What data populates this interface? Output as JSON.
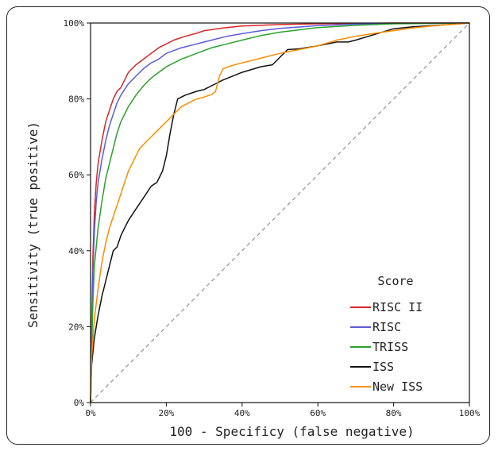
{
  "chart_data": {
    "type": "line",
    "title": "",
    "xlabel": "100 - Specificy (false negative)",
    "ylabel": "Sensitivity (true positive)",
    "xlim": [
      0,
      100
    ],
    "ylim": [
      0,
      100
    ],
    "x_ticks": [
      0,
      20,
      40,
      60,
      80,
      100
    ],
    "y_ticks": [
      0,
      20,
      40,
      60,
      80,
      100
    ],
    "x_tick_labels": [
      "0%",
      "20%",
      "40%",
      "60%",
      "80%",
      "100%"
    ],
    "y_tick_labels": [
      "0%",
      "20%",
      "40%",
      "60%",
      "80%",
      "100%"
    ],
    "grid": false,
    "legend": {
      "title": "Score",
      "position": "bottom-right"
    },
    "reference_line": {
      "style": "dashed",
      "color": "#999999",
      "points": [
        [
          0,
          0
        ],
        [
          100,
          100
        ]
      ]
    },
    "series": [
      {
        "name": "RISC II",
        "color": "#d62728",
        "points": [
          [
            0,
            0
          ],
          [
            0.3,
            20
          ],
          [
            0.6,
            38
          ],
          [
            1,
            50
          ],
          [
            1.5,
            58
          ],
          [
            2,
            63
          ],
          [
            3,
            69
          ],
          [
            4,
            74
          ],
          [
            5,
            77
          ],
          [
            6,
            80
          ],
          [
            7,
            82
          ],
          [
            8,
            83
          ],
          [
            9,
            85
          ],
          [
            10,
            87
          ],
          [
            12,
            89
          ],
          [
            14,
            90.5
          ],
          [
            16,
            92
          ],
          [
            18,
            93.5
          ],
          [
            20,
            94.5
          ],
          [
            22,
            95.5
          ],
          [
            25,
            96.5
          ],
          [
            28,
            97.3
          ],
          [
            30,
            98
          ],
          [
            35,
            98.7
          ],
          [
            40,
            99.2
          ],
          [
            50,
            99.6
          ],
          [
            60,
            99.8
          ],
          [
            80,
            100
          ],
          [
            100,
            100
          ]
        ]
      },
      {
        "name": "RISC",
        "color": "#5b5bd6",
        "points": [
          [
            0,
            0
          ],
          [
            0.3,
            18
          ],
          [
            0.6,
            34
          ],
          [
            1,
            45
          ],
          [
            1.5,
            53
          ],
          [
            2,
            58
          ],
          [
            3,
            64
          ],
          [
            4,
            69
          ],
          [
            5,
            73
          ],
          [
            6,
            76
          ],
          [
            7,
            79
          ],
          [
            8,
            81
          ],
          [
            9,
            82.5
          ],
          [
            10,
            84
          ],
          [
            12,
            86
          ],
          [
            14,
            88
          ],
          [
            16,
            89.5
          ],
          [
            18,
            90.5
          ],
          [
            20,
            92
          ],
          [
            24,
            93.5
          ],
          [
            28,
            94.5
          ],
          [
            32,
            95.5
          ],
          [
            36,
            96.5
          ],
          [
            40,
            97.2
          ],
          [
            45,
            98
          ],
          [
            50,
            98.6
          ],
          [
            60,
            99.3
          ],
          [
            70,
            99.7
          ],
          [
            80,
            99.9
          ],
          [
            100,
            100
          ]
        ]
      },
      {
        "name": "TRISS",
        "color": "#2ca02c",
        "points": [
          [
            0,
            0
          ],
          [
            0.3,
            14
          ],
          [
            0.6,
            26
          ],
          [
            1,
            36
          ],
          [
            2,
            46
          ],
          [
            3,
            53
          ],
          [
            4,
            59
          ],
          [
            5,
            63
          ],
          [
            6,
            67
          ],
          [
            7,
            71
          ],
          [
            8,
            74
          ],
          [
            10,
            78
          ],
          [
            12,
            81
          ],
          [
            14,
            83.5
          ],
          [
            16,
            85.5
          ],
          [
            18,
            87
          ],
          [
            20,
            88.5
          ],
          [
            24,
            90.5
          ],
          [
            28,
            92
          ],
          [
            32,
            93.5
          ],
          [
            36,
            94.5
          ],
          [
            40,
            95.5
          ],
          [
            45,
            96.7
          ],
          [
            50,
            97.6
          ],
          [
            55,
            98.2
          ],
          [
            60,
            98.8
          ],
          [
            70,
            99.4
          ],
          [
            80,
            99.8
          ],
          [
            100,
            100
          ]
        ]
      },
      {
        "name": "ISS",
        "color": "#111111",
        "points": [
          [
            0,
            0
          ],
          [
            0.3,
            10
          ],
          [
            1,
            17
          ],
          [
            2,
            23
          ],
          [
            3,
            28
          ],
          [
            4,
            32
          ],
          [
            5,
            36
          ],
          [
            6,
            40
          ],
          [
            7,
            41
          ],
          [
            8,
            44
          ],
          [
            9,
            46
          ],
          [
            10,
            48
          ],
          [
            12,
            51
          ],
          [
            14,
            54
          ],
          [
            16,
            57
          ],
          [
            17.5,
            58
          ],
          [
            18,
            59
          ],
          [
            19,
            61
          ],
          [
            20,
            65
          ],
          [
            21,
            71
          ],
          [
            22,
            76
          ],
          [
            23,
            80
          ],
          [
            25,
            81
          ],
          [
            28,
            82
          ],
          [
            30,
            82.5
          ],
          [
            33,
            84
          ],
          [
            35,
            85
          ],
          [
            40,
            87
          ],
          [
            45,
            88.5
          ],
          [
            48,
            89
          ],
          [
            52,
            93
          ],
          [
            55,
            93.2
          ],
          [
            60,
            94
          ],
          [
            65,
            95
          ],
          [
            68,
            95
          ],
          [
            70,
            95.5
          ],
          [
            75,
            97
          ],
          [
            80,
            98.5
          ],
          [
            85,
            99
          ],
          [
            90,
            99.3
          ],
          [
            95,
            99.6
          ],
          [
            100,
            100
          ]
        ]
      },
      {
        "name": "New ISS",
        "color": "#ff8c00",
        "points": [
          [
            0,
            0
          ],
          [
            0.3,
            12
          ],
          [
            1,
            22
          ],
          [
            2,
            30
          ],
          [
            3,
            37
          ],
          [
            4,
            42
          ],
          [
            5,
            46
          ],
          [
            6,
            49
          ],
          [
            7,
            52
          ],
          [
            8,
            55
          ],
          [
            9,
            58
          ],
          [
            10,
            61
          ],
          [
            11,
            63
          ],
          [
            12,
            65
          ],
          [
            13,
            67
          ],
          [
            14,
            68
          ],
          [
            16,
            70
          ],
          [
            18,
            72
          ],
          [
            20,
            74
          ],
          [
            22,
            76
          ],
          [
            24,
            78
          ],
          [
            26,
            79
          ],
          [
            28,
            80
          ],
          [
            30,
            80.5
          ],
          [
            32,
            81.2
          ],
          [
            33,
            82
          ],
          [
            34,
            86
          ],
          [
            35,
            88
          ],
          [
            38,
            89
          ],
          [
            42,
            90
          ],
          [
            46,
            91
          ],
          [
            50,
            92
          ],
          [
            55,
            93
          ],
          [
            60,
            94
          ],
          [
            65,
            95.5
          ],
          [
            70,
            96.5
          ],
          [
            75,
            97.3
          ],
          [
            80,
            98
          ],
          [
            85,
            98.7
          ],
          [
            90,
            99.2
          ],
          [
            95,
            99.6
          ],
          [
            100,
            100
          ]
        ]
      }
    ]
  }
}
